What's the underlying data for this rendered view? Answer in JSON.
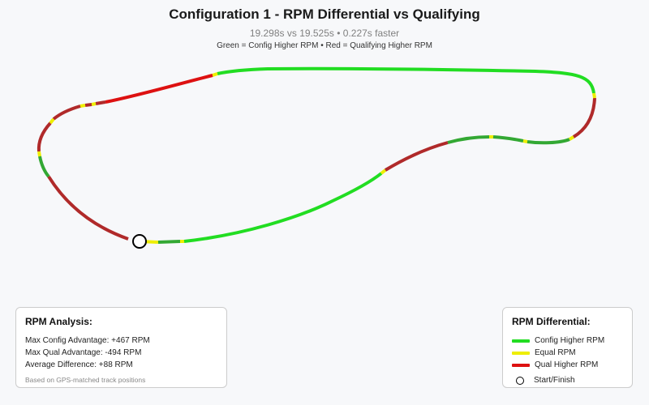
{
  "chart_data": {
    "type": "line",
    "title": "Configuration 1 - RPM Differential vs Qualifying",
    "subtitle": "19.298s vs 19.525s • 0.227s faster",
    "color_note": "Green = Config Higher RPM • Red = Qualifying Higher RPM",
    "series": [
      {
        "name": "Config Higher RPM",
        "color": "#22dd22"
      },
      {
        "name": "Equal RPM",
        "color": "#eeee00"
      },
      {
        "name": "Qual Higher RPM",
        "color": "#dd1111"
      }
    ],
    "start_finish_label": "Start/Finish",
    "grid": false
  },
  "colors": {
    "config_strong": "#22dd22",
    "config_mild": "#33a833",
    "equal": "#eeee00",
    "qual_strong": "#dd1111",
    "qual_mild": "#b02a2a"
  },
  "analysis": {
    "title": "RPM Analysis:",
    "max_config": "Max Config Advantage: +467 RPM",
    "max_qual": "Max Qual Advantage: -494 RPM",
    "average": "Average Difference: +88 RPM",
    "footnote": "Based on GPS-matched track positions"
  },
  "differential_legend": {
    "title": "RPM Differential:",
    "items": [
      {
        "label": "Config Higher RPM",
        "color": "#22dd22"
      },
      {
        "label": "Equal RPM",
        "color": "#eeee00"
      },
      {
        "label": "Qual Higher RPM",
        "color": "#dd1111"
      }
    ],
    "start_finish": "Start/Finish"
  }
}
